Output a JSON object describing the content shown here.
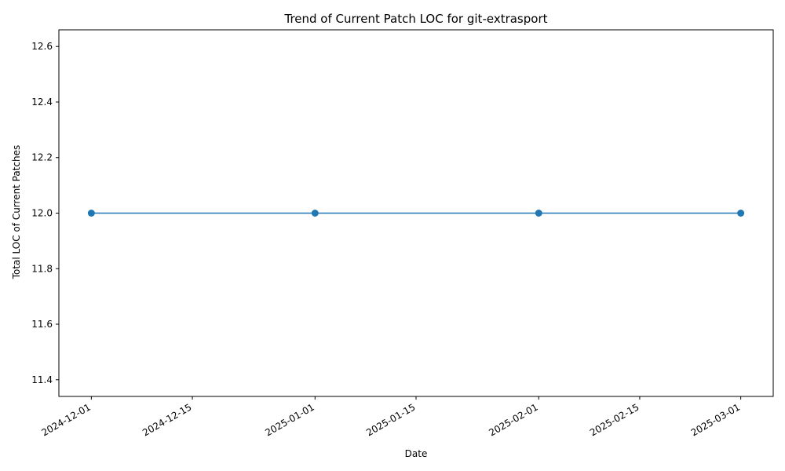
{
  "chart_data": {
    "type": "line",
    "title": "Trend of Current Patch LOC for git-extrasport",
    "xlabel": "Date",
    "ylabel": "Total LOC of Current Patches",
    "x": [
      "2024-12-01",
      "2025-01-01",
      "2025-02-01",
      "2025-03-01"
    ],
    "series": [
      {
        "values": [
          12.0,
          12.0,
          12.0,
          12.0
        ],
        "color": "#1f77b4",
        "marker": "circle"
      }
    ],
    "x_ticks": [
      "2024-12-01",
      "2024-12-15",
      "2025-01-01",
      "2025-01-15",
      "2025-02-01",
      "2025-02-15",
      "2025-03-01"
    ],
    "y_ticks": [
      11.4,
      11.6,
      11.8,
      12.0,
      12.2,
      12.4,
      12.6
    ],
    "xlim": [
      "2024-11-26.5",
      "2025-03-05.5"
    ],
    "ylim": [
      11.34,
      12.66
    ],
    "grid": false,
    "legend": "none"
  }
}
